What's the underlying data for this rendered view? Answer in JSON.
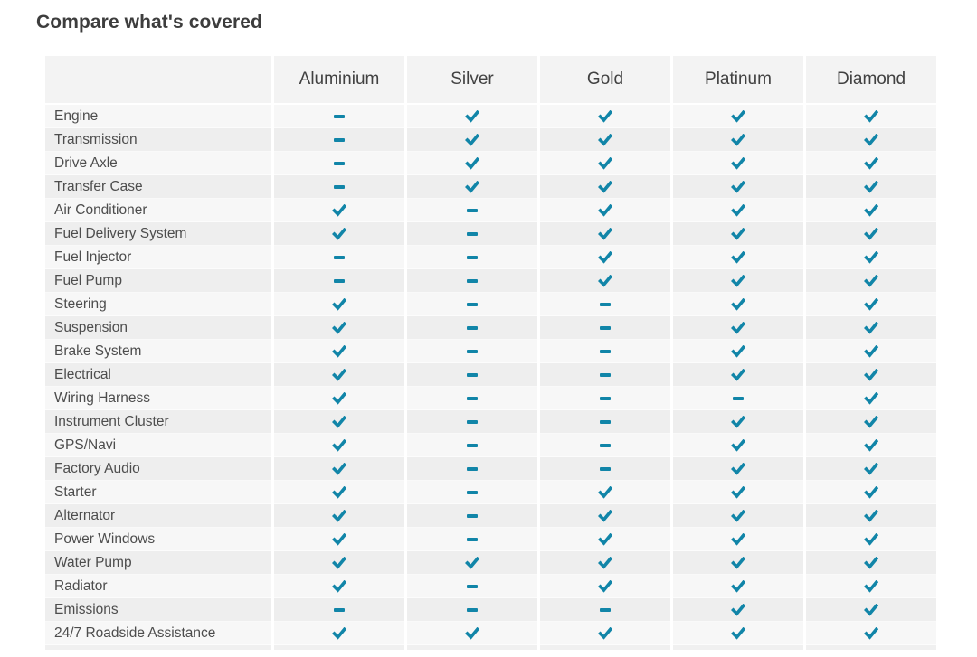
{
  "title": "Compare what's covered",
  "table": {
    "columns": [
      "Aluminium",
      "Silver",
      "Gold",
      "Platinum",
      "Diamond"
    ],
    "rows": [
      {
        "label": "Engine",
        "values": [
          "dash",
          "check",
          "check",
          "check",
          "check"
        ]
      },
      {
        "label": "Transmission",
        "values": [
          "dash",
          "check",
          "check",
          "check",
          "check"
        ]
      },
      {
        "label": "Drive Axle",
        "values": [
          "dash",
          "check",
          "check",
          "check",
          "check"
        ]
      },
      {
        "label": "Transfer Case",
        "values": [
          "dash",
          "check",
          "check",
          "check",
          "check"
        ]
      },
      {
        "label": "Air Conditioner",
        "values": [
          "check",
          "dash",
          "check",
          "check",
          "check"
        ]
      },
      {
        "label": "Fuel Delivery System",
        "values": [
          "check",
          "dash",
          "check",
          "check",
          "check"
        ]
      },
      {
        "label": "Fuel Injector",
        "values": [
          "dash",
          "dash",
          "check",
          "check",
          "check"
        ]
      },
      {
        "label": "Fuel Pump",
        "values": [
          "dash",
          "dash",
          "check",
          "check",
          "check"
        ]
      },
      {
        "label": "Steering",
        "values": [
          "check",
          "dash",
          "dash",
          "check",
          "check"
        ]
      },
      {
        "label": "Suspension",
        "values": [
          "check",
          "dash",
          "dash",
          "check",
          "check"
        ]
      },
      {
        "label": "Brake System",
        "values": [
          "check",
          "dash",
          "dash",
          "check",
          "check"
        ]
      },
      {
        "label": "Electrical",
        "values": [
          "check",
          "dash",
          "dash",
          "check",
          "check"
        ]
      },
      {
        "label": "Wiring Harness",
        "values": [
          "check",
          "dash",
          "dash",
          "dash",
          "check"
        ]
      },
      {
        "label": "Instrument Cluster",
        "values": [
          "check",
          "dash",
          "dash",
          "check",
          "check"
        ]
      },
      {
        "label": "GPS/Navi",
        "values": [
          "check",
          "dash",
          "dash",
          "check",
          "check"
        ]
      },
      {
        "label": "Factory Audio",
        "values": [
          "check",
          "dash",
          "dash",
          "check",
          "check"
        ]
      },
      {
        "label": "Starter",
        "values": [
          "check",
          "dash",
          "check",
          "check",
          "check"
        ]
      },
      {
        "label": "Alternator",
        "values": [
          "check",
          "dash",
          "check",
          "check",
          "check"
        ]
      },
      {
        "label": "Power Windows",
        "values": [
          "check",
          "dash",
          "check",
          "check",
          "check"
        ]
      },
      {
        "label": "Water Pump",
        "values": [
          "check",
          "check",
          "check",
          "check",
          "check"
        ]
      },
      {
        "label": "Radiator",
        "values": [
          "check",
          "dash",
          "check",
          "check",
          "check"
        ]
      },
      {
        "label": "Emissions",
        "values": [
          "dash",
          "dash",
          "dash",
          "check",
          "check"
        ]
      },
      {
        "label": "24/7 Roadside Assistance",
        "values": [
          "check",
          "check",
          "check",
          "check",
          "check"
        ]
      }
    ]
  },
  "icons": {
    "covered": "check-icon",
    "not_covered": "dash-icon"
  },
  "colors": {
    "accent": "#1185a8",
    "header_bg": "#f3f3f3",
    "row_odd_bg": "#f7f7f7",
    "row_even_bg": "#eeeeee",
    "footer_bg": "#f0f0f0",
    "title_text": "#3d3d3d",
    "header_text": "#414141",
    "label_text": "#4d4d4d"
  }
}
